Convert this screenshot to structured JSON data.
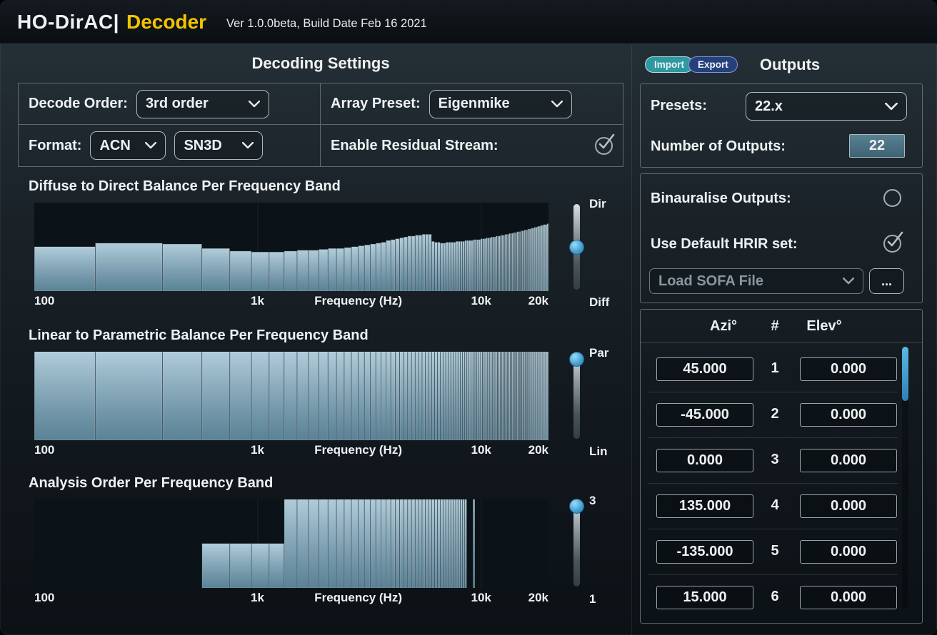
{
  "window": {
    "title_main": "HO-DirAC|",
    "title_accent": "Decoder",
    "version": "Ver 1.0.0beta, Build Date Feb 16 2021"
  },
  "colors": {
    "accent_yellow": "#f2c400",
    "bar_fill": "#8fb8cc",
    "slider_handle": "#3f9fd0",
    "import_button": "#2f99a1",
    "export_button": "#25407c",
    "scrollbar_thumb": "#3f9fd0"
  },
  "decoding": {
    "title": "Decoding Settings",
    "decode_order_label": "Decode Order:",
    "decode_order_value": "3rd order",
    "array_preset_label": "Array Preset:",
    "array_preset_value": "Eigenmike",
    "format_label": "Format:",
    "format_value_1": "ACN",
    "format_value_2": "SN3D",
    "residual_label": "Enable Residual Stream:",
    "residual_checked": true
  },
  "outputs": {
    "title": "Outputs",
    "import_label": "Import",
    "export_label": "Export",
    "presets_label": "Presets:",
    "presets_value": "22.x",
    "num_outputs_label": "Number of Outputs:",
    "num_outputs_value": "22",
    "binauralise_label": "Binauralise Outputs:",
    "binauralise_checked": false,
    "hrir_label": "Use Default HRIR set:",
    "hrir_checked": true,
    "sofa_label": "Load SOFA File",
    "sofa_browse_label": "...",
    "table": {
      "headers": [
        "Azi°",
        "#",
        "Elev°"
      ],
      "rows": [
        {
          "azi": "45.000",
          "num": "1",
          "elev": "0.000"
        },
        {
          "azi": "-45.000",
          "num": "2",
          "elev": "0.000"
        },
        {
          "azi": "0.000",
          "num": "3",
          "elev": "0.000"
        },
        {
          "azi": "135.000",
          "num": "4",
          "elev": "0.000"
        },
        {
          "azi": "-135.000",
          "num": "5",
          "elev": "0.000"
        },
        {
          "azi": "15.000",
          "num": "6",
          "elev": "0.000"
        }
      ]
    }
  },
  "chart_data": [
    {
      "type": "bar",
      "title": "Diffuse to Direct Balance Per Frequency Band",
      "xlabel": "Frequency (Hz)",
      "xticks": [
        "100",
        "1k",
        "10k",
        "20k"
      ],
      "x_scale": "log",
      "fmin_hz": 100,
      "fmax_hz": 20000,
      "bin_width_hz": 187.5,
      "ylim": [
        0,
        1
      ],
      "grid_hz": [
        1000,
        10000
      ],
      "slider": {
        "top_label": "Dir",
        "bottom_label": "Diff",
        "value": 0.5
      },
      "values": [
        0.5,
        0.54,
        0.53,
        0.48,
        0.45,
        0.44,
        0.44,
        0.45,
        0.46,
        0.46,
        0.47,
        0.48,
        0.48,
        0.49,
        0.5,
        0.51,
        0.52,
        0.53,
        0.54,
        0.55,
        0.57,
        0.58,
        0.59,
        0.6,
        0.61,
        0.62,
        0.62,
        0.63,
        0.63,
        0.64,
        0.64,
        0.64,
        0.56,
        0.55,
        0.55,
        0.54,
        0.54,
        0.55,
        0.55,
        0.55,
        0.55,
        0.56,
        0.56,
        0.56,
        0.56,
        0.57,
        0.57,
        0.57,
        0.57,
        0.58,
        0.58,
        0.58,
        0.58,
        0.59,
        0.59,
        0.59,
        0.6,
        0.6,
        0.6,
        0.61,
        0.61,
        0.61,
        0.62,
        0.62,
        0.62,
        0.63,
        0.63,
        0.63,
        0.64,
        0.64,
        0.64,
        0.65,
        0.65,
        0.65,
        0.66,
        0.66,
        0.66,
        0.67,
        0.67,
        0.67,
        0.68,
        0.68,
        0.68,
        0.69,
        0.69,
        0.69,
        0.7,
        0.7,
        0.7,
        0.71,
        0.71,
        0.71,
        0.72,
        0.72,
        0.72,
        0.73,
        0.73,
        0.73,
        0.74,
        0.74,
        0.74,
        0.75,
        0.75,
        0.75,
        0.75,
        0.76,
        0.76
      ]
    },
    {
      "type": "bar",
      "title": "Linear to Parametric Balance Per Frequency Band",
      "xlabel": "Frequency (Hz)",
      "xticks": [
        "100",
        "1k",
        "10k",
        "20k"
      ],
      "x_scale": "log",
      "fmin_hz": 100,
      "fmax_hz": 20000,
      "bin_width_hz": 187.5,
      "ylim": [
        0,
        1
      ],
      "grid_hz": [
        1000,
        10000
      ],
      "slider": {
        "top_label": "Par",
        "bottom_label": "Lin",
        "value": 0.93
      },
      "values": [
        1,
        1,
        1,
        1,
        1,
        1,
        1,
        1,
        1,
        1,
        1,
        1,
        1,
        1,
        1,
        1,
        1,
        1,
        1,
        1,
        1,
        1,
        1,
        1,
        1,
        1,
        1,
        1,
        1,
        1,
        1,
        1,
        1,
        1,
        1,
        1,
        1,
        1,
        1,
        1,
        1,
        1,
        1,
        1,
        1,
        1,
        1,
        1,
        1,
        1,
        1,
        1,
        1,
        1,
        1,
        1,
        1,
        1,
        1,
        1,
        1,
        1,
        1,
        1,
        1,
        1,
        1,
        1,
        1,
        1,
        1,
        1,
        1,
        1,
        1,
        1,
        1,
        1,
        1,
        1,
        1,
        1,
        1,
        1,
        1,
        1,
        1,
        1,
        1,
        1,
        1,
        1,
        1,
        1,
        1,
        1,
        1,
        1,
        1,
        1,
        1,
        1,
        1,
        1,
        1,
        1,
        1
      ]
    },
    {
      "type": "bar",
      "title": "Analysis Order Per Frequency Band",
      "xlabel": "Frequency (Hz)",
      "xticks": [
        "100",
        "1k",
        "10k",
        "20k"
      ],
      "x_scale": "log",
      "fmin_hz": 100,
      "fmax_hz": 20000,
      "bin_width_hz": 187.5,
      "ylim": [
        1,
        3
      ],
      "grid_hz": [
        1000,
        10000
      ],
      "slider": {
        "top_label": "3",
        "bottom_label": "1",
        "value": 1.0
      },
      "values": [
        1,
        1,
        1,
        2,
        2,
        2,
        2,
        3,
        3,
        3,
        3,
        3,
        3,
        3,
        3,
        3,
        3,
        3,
        3,
        3,
        3,
        3,
        3,
        3,
        3,
        3,
        3,
        3,
        3,
        3,
        3,
        3,
        3,
        3,
        3,
        3,
        3,
        3,
        3,
        3,
        3,
        3,
        3,
        3,
        3,
        3,
        1,
        1,
        1,
        3,
        1,
        1,
        1,
        1,
        1,
        1,
        1,
        1,
        1,
        1,
        1,
        1,
        1,
        1,
        1,
        1,
        1,
        1,
        1,
        1,
        1,
        1,
        1,
        1,
        1,
        1,
        1,
        1,
        1,
        1,
        1,
        1,
        1,
        1,
        1,
        1,
        1,
        1,
        1,
        1,
        1,
        1,
        1,
        1,
        1,
        1,
        1,
        1,
        1,
        1,
        1,
        1,
        1,
        1,
        1,
        1,
        1
      ]
    }
  ]
}
